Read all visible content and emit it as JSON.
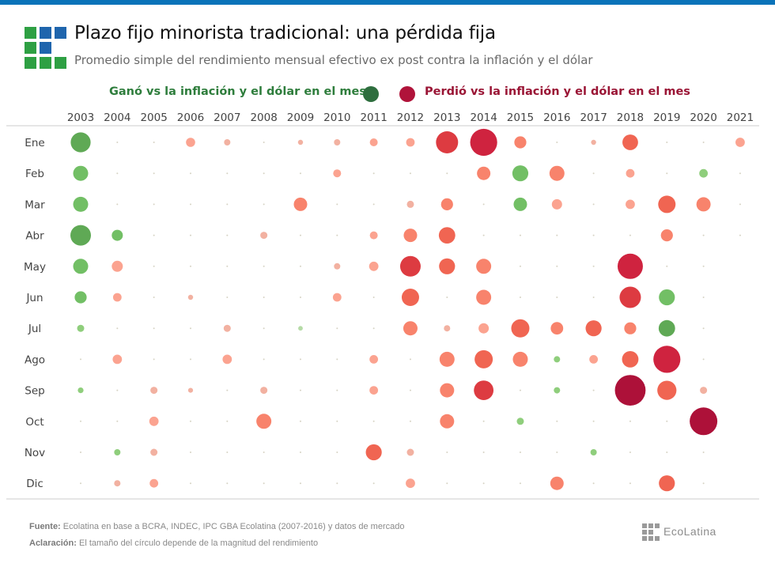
{
  "header": {
    "title": "Plazo fijo minorista tradicional: una pérdida fija",
    "subtitle": "Promedio simple del rendimiento mensual efectivo ex post contra la inflación y el dólar"
  },
  "legend": {
    "win_label": "Ganó vs la inflación y el dólar en el mes",
    "lose_label": "Perdió vs la inflación y el dólar en el mes",
    "win_color": "#2e6e3e",
    "lose_color": "#b0133a"
  },
  "footer": {
    "source_label": "Fuente:",
    "source_text": "Ecolatina en base a BCRA, INDEC, IPC GBA Ecolatina (2007-2016) y datos de mercado",
    "note_label": "Aclaración:",
    "note_text": "El tamaño del círculo depende de la magnitud del rendimiento",
    "brand": "EcoLatina"
  },
  "colors": {
    "topbar": "#0a73b9",
    "logo_green": "#2ea043",
    "logo_blue": "#1f65ad",
    "grid_line": "#cccccc",
    "empty_dot": "#d6d3c4",
    "win_scale": [
      "#b5dba6",
      "#8fce7c",
      "#72bf65",
      "#5fa955"
    ],
    "lose_scale": [
      "#e6bfae",
      "#f2b1a1",
      "#fba390",
      "#f8836c",
      "#f06552",
      "#dd3b41",
      "#cf233f",
      "#ad1139"
    ]
  },
  "chart_data": {
    "type": "bubble-grid",
    "title": "Plazo fijo minorista tradicional: una pérdida fija",
    "subtitle": "Promedio simple del rendimiento mensual efectivo ex post contra la inflación y el dólar",
    "xlabel": "",
    "ylabel": "",
    "x_categories": [
      "2003",
      "2004",
      "2005",
      "2006",
      "2007",
      "2008",
      "2009",
      "2010",
      "2011",
      "2012",
      "2013",
      "2014",
      "2015",
      "2016",
      "2017",
      "2018",
      "2019",
      "2020",
      "2021"
    ],
    "y_categories": [
      "Ene",
      "Feb",
      "Mar",
      "Abr",
      "May",
      "Jun",
      "Jul",
      "Ago",
      "Sep",
      "Oct",
      "Nov",
      "Dic"
    ],
    "value_note": "Relative magnitude of real monthly return (positive = gained vs inflation and dollar, negative = lost; 0 = negligible). Estimated from circle size.",
    "legend": [
      "Ganó vs la inflación y el dólar en el mes",
      "Perdió vs la inflación y el dólar en el mes"
    ],
    "legend_position": "top-center",
    "grid": false,
    "values": [
      [
        7.0,
        0,
        0,
        -3.2,
        -2.2,
        0,
        -1.8,
        -2.2,
        -2.8,
        -3.0,
        -7.8,
        -9.5,
        -4.2,
        0,
        -1.8,
        -5.5,
        0,
        0,
        -3.3
      ],
      [
        5.3,
        0,
        0,
        0,
        0,
        0,
        0,
        -2.8,
        0,
        0,
        0,
        -4.7,
        5.6,
        -5.3,
        0,
        -3.0,
        0,
        3.0,
        0
      ],
      [
        5.3,
        0,
        0,
        0,
        0,
        0,
        -4.7,
        0,
        0,
        -2.5,
        -4.2,
        0,
        4.7,
        -3.6,
        0,
        -3.3,
        -6.1,
        -5.0,
        0
      ],
      [
        7.2,
        3.9,
        0,
        0,
        0,
        -2.5,
        0,
        0,
        -2.8,
        -4.7,
        -5.8,
        0,
        0,
        0,
        0,
        0,
        -4.2,
        0,
        0
      ],
      [
        5.3,
        -3.9,
        0,
        0,
        0,
        0,
        0,
        -2.2,
        -3.3,
        -7.2,
        -5.6,
        -5.3,
        0,
        0,
        0,
        -8.9,
        0,
        0,
        null
      ],
      [
        4.2,
        -3.0,
        0,
        -1.8,
        0,
        0,
        0,
        -3.0,
        0,
        -6.1,
        0,
        -5.3,
        0,
        0,
        0,
        -7.5,
        5.6,
        0,
        null
      ],
      [
        2.5,
        0,
        0,
        0,
        -2.5,
        0,
        1.6,
        0,
        0,
        -5.0,
        -2.2,
        -3.6,
        -6.4,
        -4.4,
        -5.6,
        -4.2,
        5.8,
        0,
        null
      ],
      [
        0,
        -3.3,
        0,
        0,
        -3.3,
        0,
        0,
        0,
        -3.0,
        0,
        -5.3,
        -6.4,
        -5.3,
        2.2,
        -3.0,
        -5.8,
        -9.5,
        0,
        null
      ],
      [
        2.0,
        0,
        -2.5,
        -1.7,
        0,
        -2.5,
        0,
        0,
        -3.0,
        0,
        -5.0,
        -6.9,
        0,
        2.2,
        0,
        -10.8,
        -6.7,
        -2.5,
        null
      ],
      [
        0,
        0,
        -3.3,
        0,
        0,
        -5.3,
        0,
        0,
        0,
        0,
        -5.0,
        0,
        2.5,
        0,
        0,
        0,
        0,
        -9.7,
        null
      ],
      [
        0,
        2.2,
        -2.5,
        0,
        0,
        0,
        0,
        0,
        -5.6,
        -2.5,
        0,
        0,
        0,
        0,
        2.2,
        0,
        0,
        0,
        null
      ],
      [
        0,
        -2.2,
        -3.0,
        0,
        0,
        0,
        0,
        0,
        0,
        -3.3,
        0,
        0,
        0,
        -4.7,
        0,
        0,
        -5.6,
        0,
        null
      ]
    ]
  }
}
